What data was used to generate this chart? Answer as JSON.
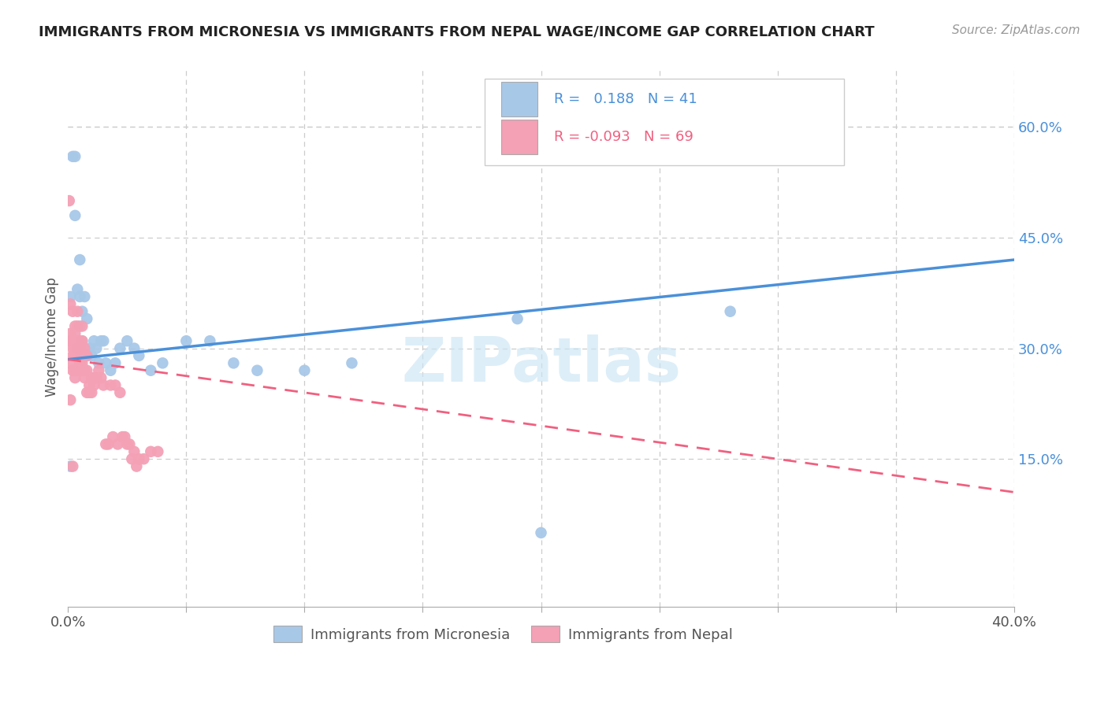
{
  "title": "IMMIGRANTS FROM MICRONESIA VS IMMIGRANTS FROM NEPAL WAGE/INCOME GAP CORRELATION CHART",
  "source": "Source: ZipAtlas.com",
  "ylabel": "Wage/Income Gap",
  "xlim": [
    0.0,
    0.4
  ],
  "ylim": [
    -0.05,
    0.68
  ],
  "y_ticks_right": [
    0.15,
    0.3,
    0.45,
    0.6
  ],
  "y_tick_labels_right": [
    "15.0%",
    "30.0%",
    "45.0%",
    "60.0%"
  ],
  "micronesia_color": "#a8c8e8",
  "nepal_color": "#f4a0b5",
  "micronesia_line_color": "#4a90d9",
  "nepal_line_color": "#f06080",
  "R_micronesia": 0.188,
  "N_micronesia": 41,
  "R_nepal": -0.093,
  "N_nepal": 69,
  "mic_line_x0": 0.0,
  "mic_line_y0": 0.285,
  "mic_line_x1": 0.4,
  "mic_line_y1": 0.42,
  "nep_line_x0": 0.0,
  "nep_line_y0": 0.285,
  "nep_line_x1": 0.4,
  "nep_line_y1": 0.105,
  "micronesia_x": [
    0.001,
    0.001,
    0.002,
    0.003,
    0.003,
    0.004,
    0.004,
    0.005,
    0.005,
    0.005,
    0.006,
    0.006,
    0.007,
    0.007,
    0.008,
    0.008,
    0.009,
    0.01,
    0.011,
    0.012,
    0.013,
    0.014,
    0.015,
    0.016,
    0.018,
    0.02,
    0.022,
    0.025,
    0.028,
    0.03,
    0.035,
    0.04,
    0.05,
    0.06,
    0.07,
    0.08,
    0.1,
    0.12,
    0.19,
    0.28,
    0.2
  ],
  "micronesia_y": [
    0.14,
    0.37,
    0.56,
    0.56,
    0.48,
    0.3,
    0.38,
    0.33,
    0.37,
    0.42,
    0.31,
    0.35,
    0.37,
    0.29,
    0.29,
    0.34,
    0.3,
    0.29,
    0.31,
    0.3,
    0.28,
    0.31,
    0.31,
    0.28,
    0.27,
    0.28,
    0.3,
    0.31,
    0.3,
    0.29,
    0.27,
    0.28,
    0.31,
    0.31,
    0.28,
    0.27,
    0.27,
    0.28,
    0.34,
    0.35,
    0.05
  ],
  "nepal_x": [
    0.0005,
    0.001,
    0.001,
    0.001,
    0.001,
    0.001,
    0.002,
    0.002,
    0.002,
    0.002,
    0.002,
    0.002,
    0.003,
    0.003,
    0.003,
    0.003,
    0.003,
    0.003,
    0.003,
    0.004,
    0.004,
    0.004,
    0.004,
    0.004,
    0.005,
    0.005,
    0.005,
    0.005,
    0.005,
    0.006,
    0.006,
    0.006,
    0.006,
    0.007,
    0.007,
    0.007,
    0.007,
    0.007,
    0.008,
    0.008,
    0.008,
    0.009,
    0.009,
    0.01,
    0.01,
    0.011,
    0.011,
    0.012,
    0.013,
    0.014,
    0.015,
    0.016,
    0.017,
    0.018,
    0.019,
    0.02,
    0.021,
    0.022,
    0.023,
    0.024,
    0.025,
    0.026,
    0.027,
    0.028,
    0.029,
    0.03,
    0.032,
    0.035,
    0.038
  ],
  "nepal_y": [
    0.5,
    0.28,
    0.32,
    0.36,
    0.31,
    0.23,
    0.29,
    0.35,
    0.3,
    0.27,
    0.31,
    0.14,
    0.3,
    0.32,
    0.29,
    0.27,
    0.33,
    0.26,
    0.31,
    0.27,
    0.3,
    0.29,
    0.33,
    0.35,
    0.3,
    0.31,
    0.27,
    0.28,
    0.31,
    0.29,
    0.28,
    0.31,
    0.33,
    0.27,
    0.26,
    0.29,
    0.27,
    0.3,
    0.27,
    0.24,
    0.29,
    0.24,
    0.25,
    0.26,
    0.24,
    0.25,
    0.26,
    0.26,
    0.27,
    0.26,
    0.25,
    0.17,
    0.17,
    0.25,
    0.18,
    0.25,
    0.17,
    0.24,
    0.18,
    0.18,
    0.17,
    0.17,
    0.15,
    0.16,
    0.14,
    0.15,
    0.15,
    0.16,
    0.16
  ],
  "watermark": "ZIPatlas",
  "background_color": "#ffffff",
  "grid_color": "#cccccc"
}
